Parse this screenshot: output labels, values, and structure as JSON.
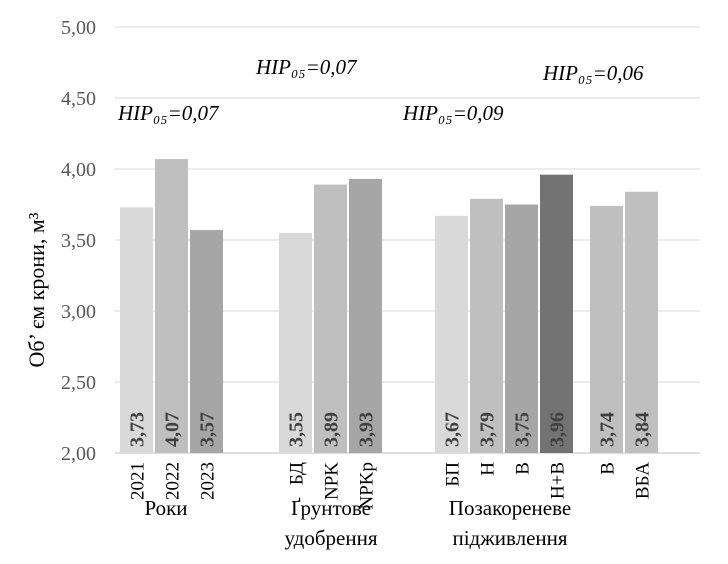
{
  "chart_data": {
    "type": "bar",
    "ylabel": "Об’ єм крони, м³",
    "ylim": [
      2.0,
      5.0
    ],
    "yticks": [
      "2,00",
      "2,50",
      "3,00",
      "3,50",
      "4,00",
      "4,50",
      "5,00"
    ],
    "grid": true,
    "groups": [
      {
        "label": "Роки",
        "hir": "HIP₀₅=0,07",
        "bars": [
          {
            "category": "2021",
            "value": 3.73,
            "label": "3,73",
            "color": "#d9d9d9"
          },
          {
            "category": "2022",
            "value": 4.07,
            "label": "4,07",
            "color": "#bfbfbf"
          },
          {
            "category": "2023",
            "value": 3.57,
            "label": "3,57",
            "color": "#a6a6a6"
          }
        ]
      },
      {
        "label": "Ґрунтове удобрення",
        "hir": "HIP₀₅=0,07",
        "bars": [
          {
            "category": "БД",
            "value": 3.55,
            "label": "3,55",
            "color": "#d9d9d9"
          },
          {
            "category": "NPK",
            "value": 3.89,
            "label": "3,89",
            "color": "#bfbfbf"
          },
          {
            "category": "NPKр",
            "value": 3.93,
            "label": "3,93",
            "color": "#a6a6a6"
          }
        ]
      },
      {
        "label": "Позакореневе підживлення",
        "hir": "HIP₀₅=0,09",
        "bars": [
          {
            "category": "БП",
            "value": 3.67,
            "label": "3,67",
            "color": "#d9d9d9"
          },
          {
            "category": "Н",
            "value": 3.79,
            "label": "3,79",
            "color": "#bfbfbf"
          },
          {
            "category": "В",
            "value": 3.75,
            "label": "3,75",
            "color": "#a6a6a6"
          },
          {
            "category": "Н+В",
            "value": 3.96,
            "label": "3,96",
            "color": "#737373"
          }
        ]
      },
      {
        "label": "",
        "hir": "HIP₀₅=0,06",
        "bars": [
          {
            "category": "В",
            "value": 3.74,
            "label": "3,74",
            "color": "#bfbfbf"
          },
          {
            "category": "ВБА",
            "value": 3.84,
            "label": "3,84",
            "color": "#bfbfbf"
          }
        ]
      }
    ]
  }
}
